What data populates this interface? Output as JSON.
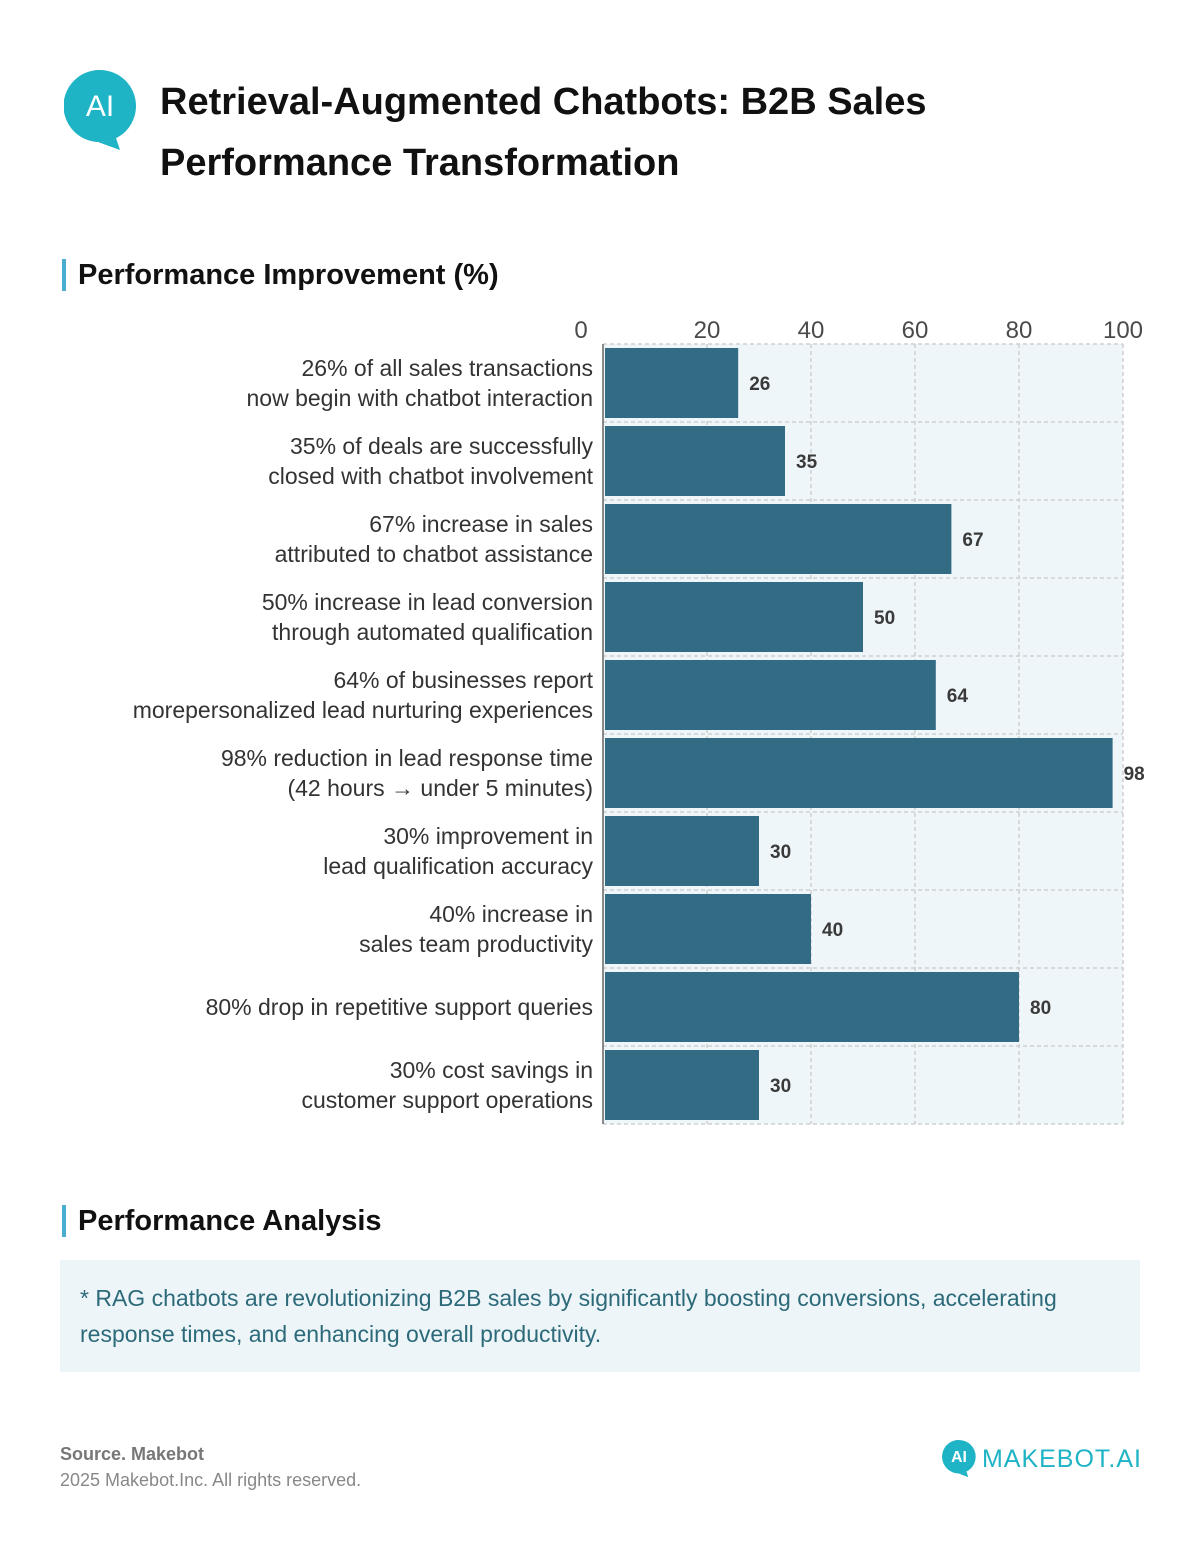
{
  "header": {
    "logo_text": "AI",
    "title": "Retrieval-Augmented Chatbots: B2B Sales Performance Transformation"
  },
  "sections": {
    "chart_heading": "Performance Improvement (%)",
    "analysis_heading": "Performance Analysis"
  },
  "analysis": {
    "text": "* RAG chatbots are revolutionizing B2B sales by significantly boosting conversions, accelerating response times, and enhancing overall productivity."
  },
  "footer": {
    "source": "Source. Makebot",
    "copyright": "2025 Makebot.Inc. All rights reserved.",
    "brand_icon_text": "AI",
    "brand_name": "MAKEBOT.AI"
  },
  "colors": {
    "bar": "#336b84",
    "accent": "#4aaed1",
    "logo": "#1fb3c6",
    "plot_bg": "#eef6f9"
  },
  "chart_data": {
    "type": "bar",
    "orientation": "horizontal",
    "title": "Performance Improvement (%)",
    "xlabel": "",
    "ylabel": "",
    "xlim": [
      0,
      100
    ],
    "xticks": [
      0,
      20,
      40,
      60,
      80,
      100
    ],
    "grid": true,
    "categories": [
      [
        "26% of all sales transactions",
        "now begin with chatbot interaction"
      ],
      [
        "35% of deals are successfully",
        "closed with chatbot involvement"
      ],
      [
        "67% increase in sales",
        "attributed to chatbot assistance"
      ],
      [
        "50% increase in lead conversion",
        "through automated qualification"
      ],
      [
        "64% of businesses report",
        "morepersonalized lead nurturing experiences"
      ],
      [
        "98% reduction in lead response time",
        "(42 hours → under 5 minutes)"
      ],
      [
        "30% improvement in",
        "lead qualification accuracy"
      ],
      [
        "40% increase in",
        "sales team productivity"
      ],
      [
        "80% drop in repetitive support queries"
      ],
      [
        "30% cost savings in",
        "customer support operations"
      ]
    ],
    "values": [
      26,
      35,
      67,
      50,
      64,
      98,
      30,
      40,
      80,
      30
    ]
  }
}
